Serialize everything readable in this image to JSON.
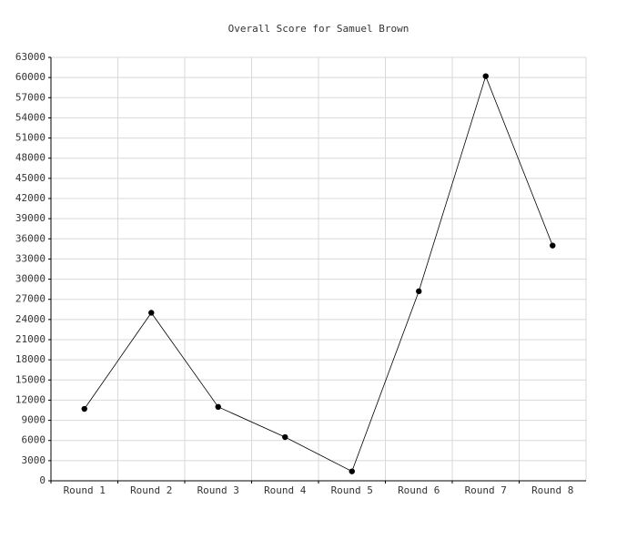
{
  "chart_data": {
    "type": "line",
    "title": "Overall Score for Samuel Brown",
    "categories": [
      "Round 1",
      "Round 2",
      "Round 3",
      "Round 4",
      "Round 5",
      "Round 6",
      "Round 7",
      "Round 8"
    ],
    "values": [
      10700,
      25000,
      11000,
      6500,
      1400,
      28200,
      60200,
      35000
    ],
    "color": "#000000",
    "ylim": [
      0,
      63000
    ],
    "yticks": [
      0,
      3000,
      6000,
      9000,
      12000,
      15000,
      18000,
      21000,
      24000,
      27000,
      30000,
      33000,
      36000,
      39000,
      42000,
      45000,
      48000,
      51000,
      54000,
      57000,
      60000,
      63000
    ],
    "grid": true
  }
}
